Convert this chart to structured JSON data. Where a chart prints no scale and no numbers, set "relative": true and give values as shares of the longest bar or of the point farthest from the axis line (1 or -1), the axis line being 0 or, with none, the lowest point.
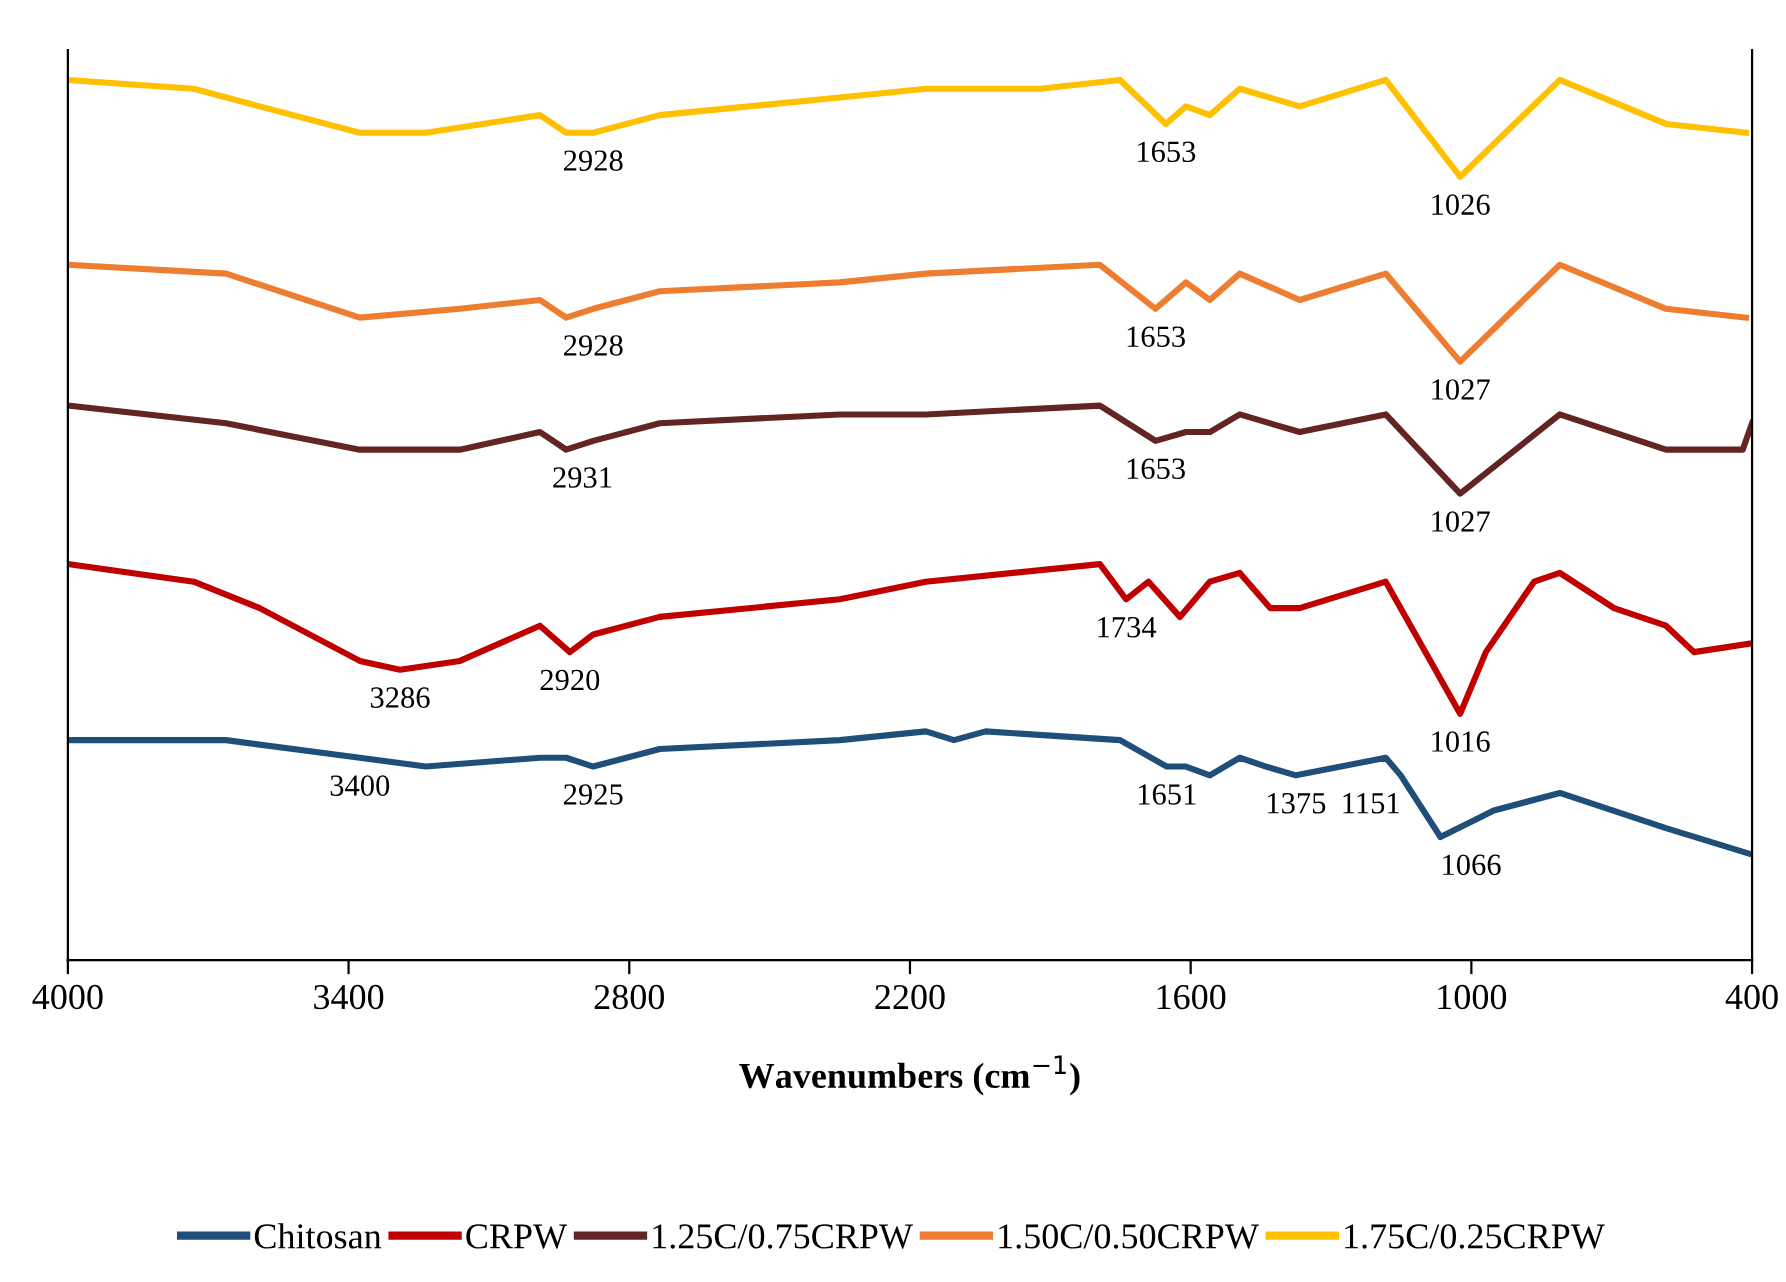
{
  "chart_data": {
    "type": "line",
    "relative": true,
    "xlabel": "Wavenumbers (cm$^{−1}$)",
    "xlim": [
      4000,
      400
    ],
    "xticks": [
      4000,
      3400,
      2800,
      2200,
      1600,
      1000,
      400
    ],
    "grid": false,
    "legend": "bottom",
    "marker": "none",
    "line_style": "solid",
    "tick_labels": "x",
    "series": [
      {
        "name": "Chitosan",
        "color": "#1f4e79",
        "x": [
          4000,
          3662,
          3376,
          3235,
          2991,
          2935,
          2877,
          2735,
          2350,
          2166,
          2106,
          2038,
          1751,
          1651,
          1610,
          1559,
          1495,
          1439,
          1375,
          1183,
          1151,
          1066,
          952,
          811,
          584,
          400
        ],
        "values": [
          0.25,
          0.25,
          0.23,
          0.22,
          0.23,
          0.23,
          0.22,
          0.24,
          0.25,
          0.26,
          0.25,
          0.26,
          0.25,
          0.22,
          0.22,
          0.21,
          0.23,
          0.22,
          0.21,
          0.23,
          0.21,
          0.14,
          0.17,
          0.19,
          0.15,
          0.12
        ]
      },
      {
        "name": "CRPW",
        "color": "#c00000",
        "x": [
          4000,
          3731,
          3590,
          3376,
          3290,
          3162,
          2991,
          2927,
          2877,
          2735,
          2350,
          2166,
          1794,
          1738,
          1690,
          1623,
          1559,
          1495,
          1430,
          1367,
          1183,
          1024,
          969,
          866,
          811,
          695,
          584,
          524,
          400
        ],
        "values": [
          0.45,
          0.43,
          0.4,
          0.34,
          0.33,
          0.34,
          0.38,
          0.35,
          0.37,
          0.39,
          0.41,
          0.43,
          0.45,
          0.41,
          0.43,
          0.39,
          0.43,
          0.44,
          0.4,
          0.4,
          0.43,
          0.28,
          0.35,
          0.43,
          0.44,
          0.4,
          0.38,
          0.35,
          0.36
        ]
      },
      {
        "name": "1.25C/0.75CRPW",
        "color": "#632523",
        "x": [
          4000,
          3662,
          3376,
          3162,
          2991,
          2935,
          2877,
          2735,
          2350,
          2166,
          1794,
          1675,
          1610,
          1559,
          1495,
          1367,
          1183,
          1024,
          811,
          584,
          420,
          400
        ],
        "values": [
          0.63,
          0.61,
          0.58,
          0.58,
          0.6,
          0.58,
          0.59,
          0.61,
          0.62,
          0.62,
          0.63,
          0.59,
          0.6,
          0.6,
          0.62,
          0.6,
          0.62,
          0.53,
          0.62,
          0.58,
          0.58,
          0.61
        ]
      },
      {
        "name": "1.50C/0.50CRPW",
        "color": "#ed7d31",
        "x": [
          4000,
          3662,
          3376,
          3162,
          2991,
          2935,
          2877,
          2735,
          2350,
          2166,
          1794,
          1675,
          1610,
          1559,
          1495,
          1367,
          1183,
          1024,
          811,
          584,
          413
        ],
        "values": [
          0.79,
          0.78,
          0.73,
          0.74,
          0.75,
          0.73,
          0.74,
          0.76,
          0.77,
          0.78,
          0.79,
          0.74,
          0.77,
          0.75,
          0.78,
          0.75,
          0.78,
          0.68,
          0.79,
          0.74,
          0.73
        ]
      },
      {
        "name": "1.75C/0.25CRPW",
        "color": "#ffc000",
        "x": [
          4000,
          3731,
          3590,
          3376,
          3235,
          2991,
          2935,
          2877,
          2735,
          2350,
          2166,
          1922,
          1751,
          1653,
          1610,
          1559,
          1495,
          1367,
          1183,
          1024,
          811,
          584,
          413
        ],
        "values": [
          1.0,
          0.99,
          0.97,
          0.94,
          0.94,
          0.96,
          0.94,
          0.94,
          0.96,
          0.98,
          0.99,
          0.99,
          1.0,
          0.95,
          0.97,
          0.96,
          0.99,
          0.97,
          1.0,
          0.89,
          1.0,
          0.95,
          0.94
        ]
      }
    ],
    "annotations": [
      {
        "text": "2928",
        "x": 2877,
        "y": 0.94
      },
      {
        "text": "1653",
        "x": 1653,
        "y": 0.95
      },
      {
        "text": "1026",
        "x": 1024,
        "y": 0.89
      },
      {
        "text": "2928",
        "x": 2877,
        "y": 0.73
      },
      {
        "text": "1653",
        "x": 1675,
        "y": 0.74
      },
      {
        "text": "1027",
        "x": 1024,
        "y": 0.68
      },
      {
        "text": "2931",
        "x": 2900,
        "y": 0.58
      },
      {
        "text": "1653",
        "x": 1675,
        "y": 0.59
      },
      {
        "text": "1027",
        "x": 1024,
        "y": 0.53
      },
      {
        "text": "3286",
        "x": 3290,
        "y": 0.33
      },
      {
        "text": "2920",
        "x": 2927,
        "y": 0.35
      },
      {
        "text": "1734",
        "x": 1738,
        "y": 0.41
      },
      {
        "text": "1016",
        "x": 1024,
        "y": 0.28
      },
      {
        "text": "3400",
        "x": 3376,
        "y": 0.23
      },
      {
        "text": "2925",
        "x": 2877,
        "y": 0.22
      },
      {
        "text": "1651",
        "x": 1651,
        "y": 0.22
      },
      {
        "text": "1375",
        "x": 1375,
        "y": 0.21
      },
      {
        "text": "1151",
        "x": 1151,
        "y": 0.21
      },
      {
        "text": "1066",
        "x": 1066,
        "y": 0.14
      }
    ]
  }
}
